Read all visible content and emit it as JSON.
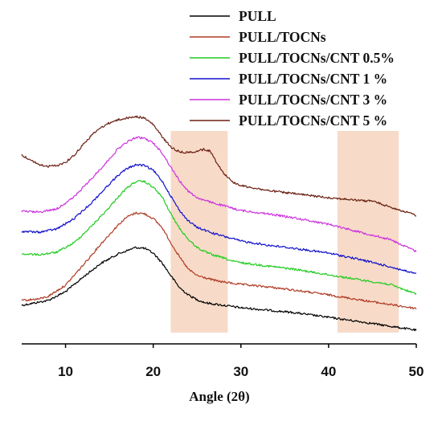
{
  "chart_data": {
    "type": "line",
    "title": "",
    "xlabel": "Angle (2θ)",
    "ylabel": "",
    "xlim": [
      5,
      50
    ],
    "xticks": [
      10,
      20,
      30,
      40,
      50
    ],
    "grid": false,
    "legend_position": "top-right",
    "highlight_bands": [
      {
        "x": [
          22,
          28.5
        ],
        "color": "#f6d5be"
      },
      {
        "x": [
          41,
          48
        ],
        "color": "#f6d5be"
      }
    ],
    "series": [
      {
        "name": "PULL",
        "color": "#000000",
        "points": [
          [
            5,
            380
          ],
          [
            8,
            374
          ],
          [
            10,
            363
          ],
          [
            12,
            345
          ],
          [
            14,
            328
          ],
          [
            16,
            316
          ],
          [
            18,
            308
          ],
          [
            19,
            309
          ],
          [
            20,
            315
          ],
          [
            21,
            327
          ],
          [
            22,
            343
          ],
          [
            23,
            358
          ],
          [
            24,
            367
          ],
          [
            25,
            373
          ],
          [
            26,
            377
          ],
          [
            28,
            380
          ],
          [
            30,
            383
          ],
          [
            33,
            386
          ],
          [
            36,
            389
          ],
          [
            40,
            395
          ],
          [
            44,
            401
          ],
          [
            47,
            406
          ],
          [
            50,
            411
          ]
        ]
      },
      {
        "name": "PULL/TOCNs",
        "color": "#b03a24",
        "points": [
          [
            5,
            374
          ],
          [
            7,
            372
          ],
          [
            8,
            369
          ],
          [
            10,
            355
          ],
          [
            12,
            330
          ],
          [
            14,
            304
          ],
          [
            16,
            280
          ],
          [
            17,
            270
          ],
          [
            18,
            265
          ],
          [
            19,
            266
          ],
          [
            20,
            272
          ],
          [
            21,
            283
          ],
          [
            22,
            302
          ],
          [
            23,
            320
          ],
          [
            24,
            335
          ],
          [
            25,
            343
          ],
          [
            26,
            346
          ],
          [
            27,
            349
          ],
          [
            28,
            351
          ],
          [
            30,
            354
          ],
          [
            33,
            357
          ],
          [
            36,
            361
          ],
          [
            40,
            367
          ],
          [
            44,
            374
          ],
          [
            47,
            379
          ],
          [
            50,
            384
          ]
        ]
      },
      {
        "name": "PULL/TOCNs/CNT 0.5%",
        "color": "#22cc22",
        "points": [
          [
            5,
            316
          ],
          [
            7,
            317
          ],
          [
            9,
            314
          ],
          [
            11,
            302
          ],
          [
            13,
            281
          ],
          [
            15,
            258
          ],
          [
            16,
            245
          ],
          [
            17,
            234
          ],
          [
            18,
            226
          ],
          [
            19,
            226
          ],
          [
            20,
            233
          ],
          [
            21,
            245
          ],
          [
            22,
            266
          ],
          [
            23,
            284
          ],
          [
            24,
            298
          ],
          [
            25,
            308
          ],
          [
            26,
            314
          ],
          [
            27,
            318
          ],
          [
            28,
            321
          ],
          [
            29,
            325
          ],
          [
            30,
            327
          ],
          [
            33,
            331
          ],
          [
            36,
            335
          ],
          [
            40,
            342
          ],
          [
            44,
            349
          ],
          [
            47,
            354
          ],
          [
            50,
            366
          ]
        ]
      },
      {
        "name": "PULL/TOCNs/CNT 1 %",
        "color": "#1010cc",
        "points": [
          [
            5,
            288
          ],
          [
            7,
            289
          ],
          [
            9,
            285
          ],
          [
            11,
            272
          ],
          [
            13,
            252
          ],
          [
            15,
            229
          ],
          [
            16,
            218
          ],
          [
            17,
            210
          ],
          [
            18,
            205
          ],
          [
            19,
            206
          ],
          [
            20,
            212
          ],
          [
            21,
            225
          ],
          [
            22,
            244
          ],
          [
            23,
            262
          ],
          [
            24,
            275
          ],
          [
            25,
            283
          ],
          [
            26,
            287
          ],
          [
            27,
            291
          ],
          [
            28,
            294
          ],
          [
            29,
            297
          ],
          [
            30,
            300
          ],
          [
            33,
            305
          ],
          [
            36,
            309
          ],
          [
            40,
            315
          ],
          [
            44,
            324
          ],
          [
            47,
            332
          ],
          [
            50,
            341
          ]
        ]
      },
      {
        "name": "PULL/TOCNs/CNT 3 %",
        "color": "#cc33dd",
        "points": [
          [
            5,
            263
          ],
          [
            7,
            264
          ],
          [
            9,
            260
          ],
          [
            11,
            245
          ],
          [
            13,
            222
          ],
          [
            15,
            198
          ],
          [
            16,
            185
          ],
          [
            17,
            177
          ],
          [
            18,
            171
          ],
          [
            19,
            172
          ],
          [
            20,
            178
          ],
          [
            21,
            190
          ],
          [
            22,
            208
          ],
          [
            23,
            225
          ],
          [
            24,
            238
          ],
          [
            25,
            246
          ],
          [
            26,
            250
          ],
          [
            27,
            253
          ],
          [
            28,
            256
          ],
          [
            29,
            259
          ],
          [
            30,
            262
          ],
          [
            33,
            266
          ],
          [
            36,
            271
          ],
          [
            40,
            279
          ],
          [
            44,
            290
          ],
          [
            47,
            298
          ],
          [
            50,
            313
          ]
        ]
      },
      {
        "name": "PULL/TOCNs/CNT 5 %",
        "color": "#6b1f12",
        "points": [
          [
            5,
            193
          ],
          [
            6,
            199
          ],
          [
            7,
            205
          ],
          [
            8,
            207
          ],
          [
            9,
            206
          ],
          [
            10,
            202
          ],
          [
            11,
            193
          ],
          [
            12,
            180
          ],
          [
            13,
            168
          ],
          [
            14,
            159
          ],
          [
            15,
            153
          ],
          [
            16,
            149
          ],
          [
            17,
            147
          ],
          [
            18,
            145
          ],
          [
            19,
            147
          ],
          [
            20,
            155
          ],
          [
            21,
            170
          ],
          [
            22,
            183
          ],
          [
            23,
            189
          ],
          [
            24,
            190
          ],
          [
            25,
            188
          ],
          [
            25.8,
            186
          ],
          [
            26.5,
            188
          ],
          [
            27,
            198
          ],
          [
            28,
            215
          ],
          [
            29,
            226
          ],
          [
            30,
            231
          ],
          [
            33,
            237
          ],
          [
            36,
            241
          ],
          [
            40,
            246
          ],
          [
            42,
            248
          ],
          [
            43,
            249
          ],
          [
            44,
            250
          ],
          [
            45,
            250
          ],
          [
            46,
            254
          ],
          [
            48,
            261
          ],
          [
            50,
            268
          ]
        ]
      }
    ]
  }
}
